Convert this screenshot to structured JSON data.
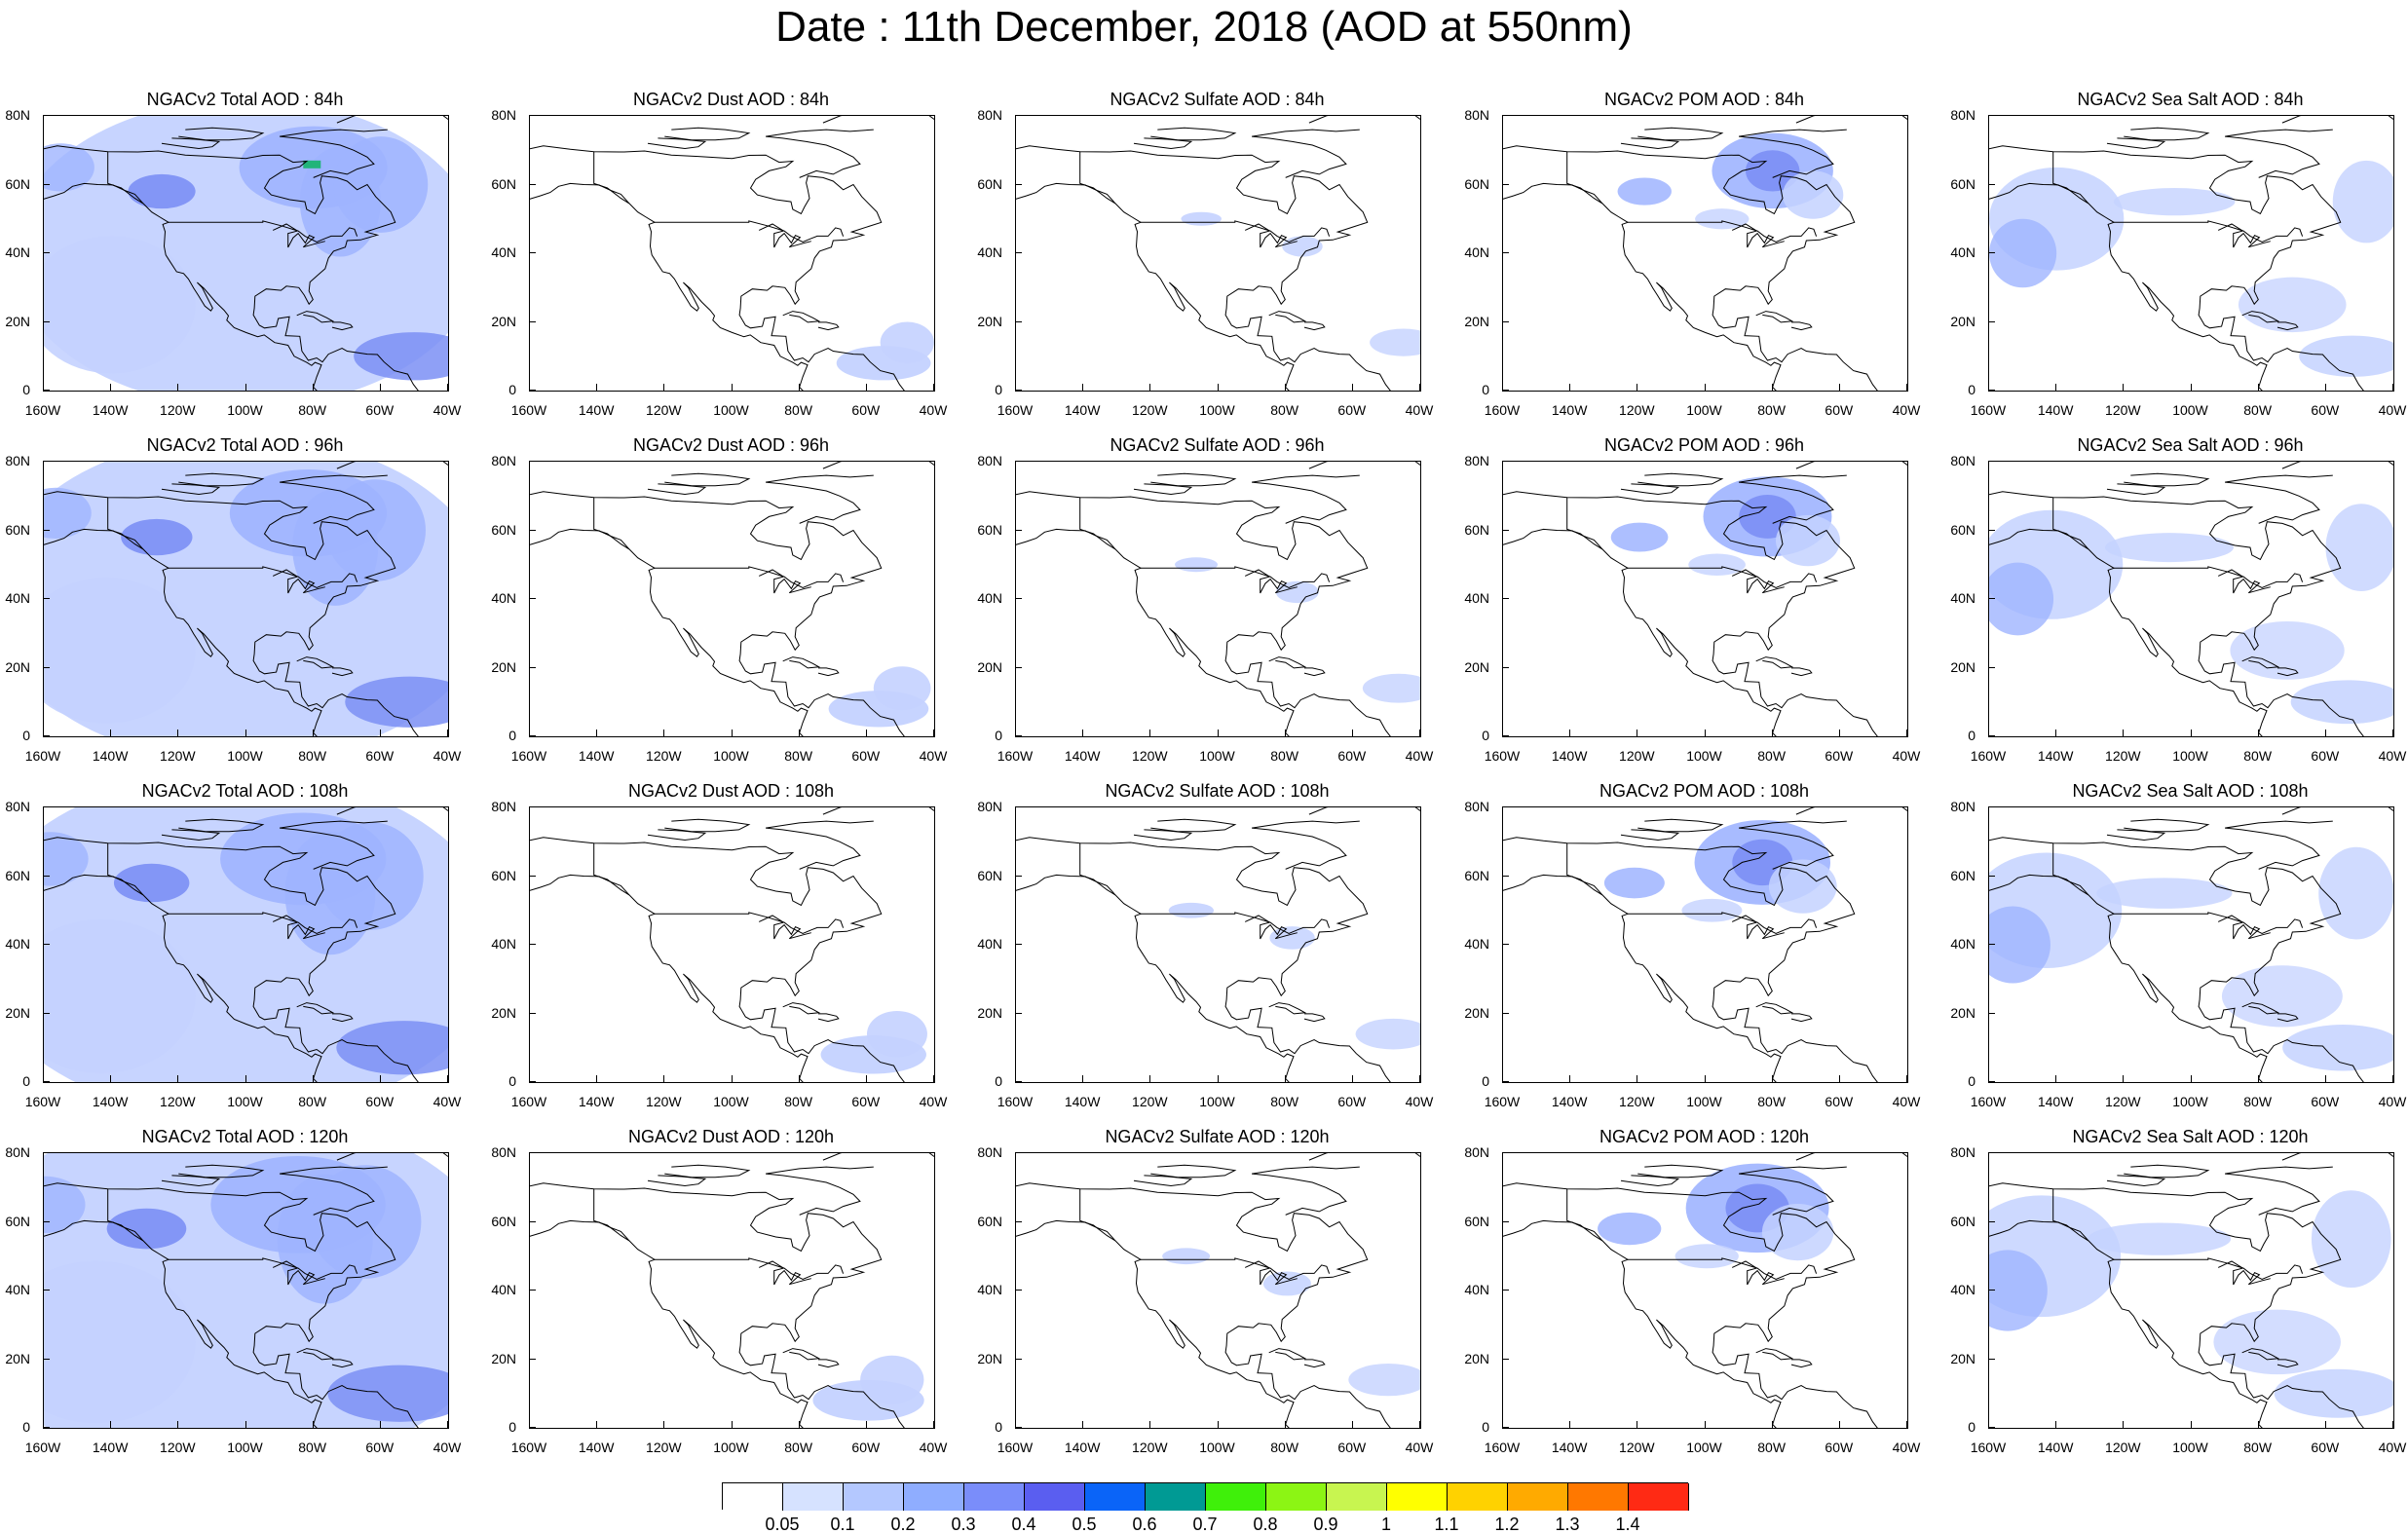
{
  "title": "Date : 11th December, 2018 (AOD at 550nm)",
  "rows": [
    "84h",
    "96h",
    "108h",
    "120h"
  ],
  "columns": [
    {
      "key": "total",
      "prefix": "NGACv2 Total AOD"
    },
    {
      "key": "dust",
      "prefix": "NGACv2 Dust AOD"
    },
    {
      "key": "sulfate",
      "prefix": "NGACv2 Sulfate AOD"
    },
    {
      "key": "pom",
      "prefix": "NGACv2 POM AOD"
    },
    {
      "key": "seasalt",
      "prefix": "NGACv2 Sea Salt AOD"
    }
  ],
  "panel_titles": [
    [
      "NGACv2 Total AOD : 84h",
      "NGACv2 Dust AOD : 84h",
      "NGACv2 Sulfate AOD : 84h",
      "NGACv2 POM AOD : 84h",
      "NGACv2 Sea Salt AOD : 84h"
    ],
    [
      "NGACv2 Total AOD : 96h",
      "NGACv2 Dust AOD : 96h",
      "NGACv2 Sulfate AOD : 96h",
      "NGACv2 POM AOD : 96h",
      "NGACv2 Sea Salt AOD : 96h"
    ],
    [
      "NGACv2 Total AOD : 108h",
      "NGACv2 Dust AOD : 108h",
      "NGACv2 Sulfate AOD : 108h",
      "NGACv2 POM AOD : 108h",
      "NGACv2 Sea Salt AOD : 108h"
    ],
    [
      "NGACv2 Total AOD : 120h",
      "NGACv2 Dust AOD : 120h",
      "NGACv2 Sulfate AOD : 120h",
      "NGACv2 POM AOD : 120h",
      "NGACv2 Sea Salt  AOD : 120h"
    ]
  ],
  "lat_ticks": [
    "0",
    "20N",
    "40N",
    "60N",
    "80N"
  ],
  "lon_ticks": [
    "160W",
    "140W",
    "120W",
    "100W",
    "80W",
    "60W",
    "40W"
  ],
  "colorbar": {
    "colors": [
      "#ffffff",
      "#d6e2ff",
      "#b4c8ff",
      "#8fadff",
      "#7a8dfa",
      "#5a5ef0",
      "#0a64f8",
      "#009a94",
      "#3ff00a",
      "#8cf514",
      "#c8f550",
      "#ffff00",
      "#ffd200",
      "#ffaa00",
      "#ff7800",
      "#ff2a14"
    ],
    "labels": [
      "0.05",
      "0.1",
      "0.2",
      "0.3",
      "0.4",
      "0.5",
      "0.6",
      "0.7",
      "0.8",
      "0.9",
      "1",
      "1.1",
      "1.2",
      "1.3",
      "1.4"
    ]
  },
  "colors": {
    "light": "#c4d2ff",
    "mid": "#9fb4ff",
    "strong": "#7b8ff5",
    "deep": "#5664e6",
    "green": "#22b47a"
  }
}
